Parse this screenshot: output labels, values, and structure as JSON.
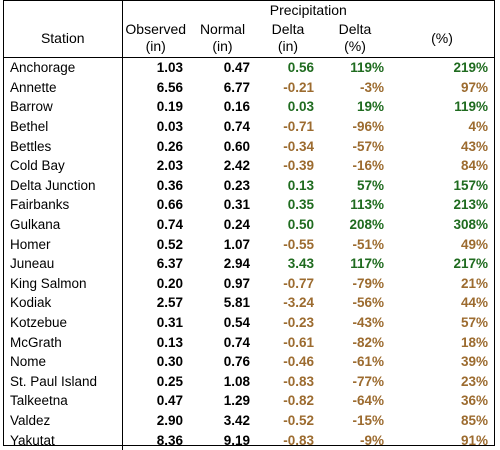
{
  "header": {
    "group_label": "Precipitation",
    "columns": [
      {
        "line1": "Station",
        "line2": ""
      },
      {
        "line1": "Observed",
        "line2": "(in)"
      },
      {
        "line1": "Normal",
        "line2": "(in)"
      },
      {
        "line1": "Delta",
        "line2": "(in)"
      },
      {
        "line1": "Delta",
        "line2": "(%)"
      },
      {
        "line1": "(%)",
        "line2": ""
      }
    ]
  },
  "colors": {
    "positive": "#1f6b1f",
    "negative": "#9c6b2f"
  },
  "rows": [
    {
      "station": "Anchorage",
      "observed": "1.03",
      "normal": "0.47",
      "delta_in": "0.56",
      "delta_pct": "119%",
      "pct": "219%",
      "sign": "pos"
    },
    {
      "station": "Annette",
      "observed": "6.56",
      "normal": "6.77",
      "delta_in": "-0.21",
      "delta_pct": "-3%",
      "pct": "97%",
      "sign": "neg"
    },
    {
      "station": "Barrow",
      "observed": "0.19",
      "normal": "0.16",
      "delta_in": "0.03",
      "delta_pct": "19%",
      "pct": "119%",
      "sign": "pos"
    },
    {
      "station": "Bethel",
      "observed": "0.03",
      "normal": "0.74",
      "delta_in": "-0.71",
      "delta_pct": "-96%",
      "pct": "4%",
      "sign": "neg"
    },
    {
      "station": "Bettles",
      "observed": "0.26",
      "normal": "0.60",
      "delta_in": "-0.34",
      "delta_pct": "-57%",
      "pct": "43%",
      "sign": "neg"
    },
    {
      "station": "Cold Bay",
      "observed": "2.03",
      "normal": "2.42",
      "delta_in": "-0.39",
      "delta_pct": "-16%",
      "pct": "84%",
      "sign": "neg"
    },
    {
      "station": "Delta Junction",
      "observed": "0.36",
      "normal": "0.23",
      "delta_in": "0.13",
      "delta_pct": "57%",
      "pct": "157%",
      "sign": "pos"
    },
    {
      "station": "Fairbanks",
      "observed": "0.66",
      "normal": "0.31",
      "delta_in": "0.35",
      "delta_pct": "113%",
      "pct": "213%",
      "sign": "pos"
    },
    {
      "station": "Gulkana",
      "observed": "0.74",
      "normal": "0.24",
      "delta_in": "0.50",
      "delta_pct": "208%",
      "pct": "308%",
      "sign": "pos"
    },
    {
      "station": "Homer",
      "observed": "0.52",
      "normal": "1.07",
      "delta_in": "-0.55",
      "delta_pct": "-51%",
      "pct": "49%",
      "sign": "neg"
    },
    {
      "station": "Juneau",
      "observed": "6.37",
      "normal": "2.94",
      "delta_in": "3.43",
      "delta_pct": "117%",
      "pct": "217%",
      "sign": "pos"
    },
    {
      "station": "King Salmon",
      "observed": "0.20",
      "normal": "0.97",
      "delta_in": "-0.77",
      "delta_pct": "-79%",
      "pct": "21%",
      "sign": "neg"
    },
    {
      "station": "Kodiak",
      "observed": "2.57",
      "normal": "5.81",
      "delta_in": "-3.24",
      "delta_pct": "-56%",
      "pct": "44%",
      "sign": "neg"
    },
    {
      "station": "Kotzebue",
      "observed": "0.31",
      "normal": "0.54",
      "delta_in": "-0.23",
      "delta_pct": "-43%",
      "pct": "57%",
      "sign": "neg"
    },
    {
      "station": "McGrath",
      "observed": "0.13",
      "normal": "0.74",
      "delta_in": "-0.61",
      "delta_pct": "-82%",
      "pct": "18%",
      "sign": "neg"
    },
    {
      "station": "Nome",
      "observed": "0.30",
      "normal": "0.76",
      "delta_in": "-0.46",
      "delta_pct": "-61%",
      "pct": "39%",
      "sign": "neg"
    },
    {
      "station": "St. Paul Island",
      "observed": "0.25",
      "normal": "1.08",
      "delta_in": "-0.83",
      "delta_pct": "-77%",
      "pct": "23%",
      "sign": "neg"
    },
    {
      "station": "Talkeetna",
      "observed": "0.47",
      "normal": "1.29",
      "delta_in": "-0.82",
      "delta_pct": "-64%",
      "pct": "36%",
      "sign": "neg"
    },
    {
      "station": "Valdez",
      "observed": "2.90",
      "normal": "3.42",
      "delta_in": "-0.52",
      "delta_pct": "-15%",
      "pct": "85%",
      "sign": "neg"
    },
    {
      "station": "Yakutat",
      "observed": "8.36",
      "normal": "9.19",
      "delta_in": "-0.83",
      "delta_pct": "-9%",
      "pct": "91%",
      "sign": "neg"
    }
  ]
}
